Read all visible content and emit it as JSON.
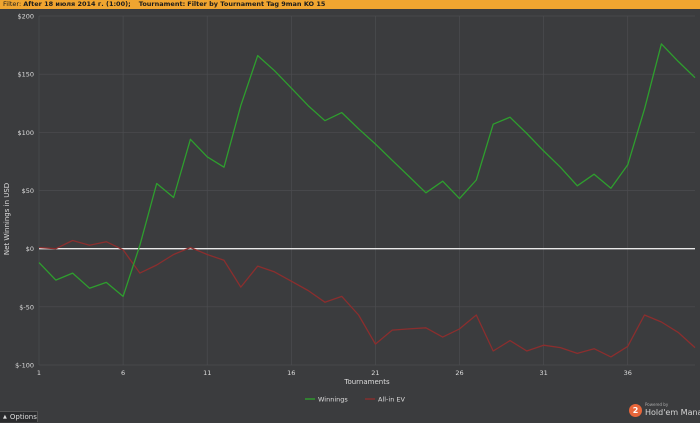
{
  "filter_bar": {
    "label": "Filter:",
    "date_filter": "After 18 июля 2014 г. (1:00);",
    "tournament_label": "Tournament:",
    "tournament_filter": "Filter by Tournament Tag  9man KO 15"
  },
  "footer": {
    "options_label": "Options",
    "powered_by": "Powered by",
    "brand_name": "Hold'em Manager",
    "brand_badge": "2"
  },
  "chart_data": {
    "type": "line",
    "xlabel": "Tournaments",
    "ylabel": "Net Winnings in USD",
    "xlim": [
      1,
      40
    ],
    "ylim": [
      -100,
      200
    ],
    "x_ticks": [
      1,
      6,
      11,
      16,
      21,
      26,
      31,
      36
    ],
    "y_ticks": [
      {
        "v": 200,
        "label": "$200"
      },
      {
        "v": 150,
        "label": "$150"
      },
      {
        "v": 100,
        "label": "$100"
      },
      {
        "v": 50,
        "label": "$50"
      },
      {
        "v": 0,
        "label": "$0"
      },
      {
        "v": -50,
        "label": "$-50"
      },
      {
        "v": -100,
        "label": "$-100"
      }
    ],
    "grid": true,
    "legend_position": "bottom-center",
    "zero_line_color": "#e8e8e8",
    "series": [
      {
        "name": "Winnings",
        "color": "#2e9e2e",
        "x": [
          1,
          2,
          3,
          4,
          5,
          6,
          7,
          8,
          9,
          10,
          11,
          12,
          13,
          14,
          15,
          16,
          17,
          18,
          19,
          20,
          21,
          22,
          23,
          24,
          25,
          26,
          27,
          28,
          29,
          30,
          31,
          32,
          33,
          34,
          35,
          36,
          37,
          38,
          39,
          40
        ],
        "values": [
          -12,
          -27,
          -21,
          -34,
          -29,
          -41,
          3,
          56,
          44,
          94,
          79,
          70,
          123,
          166,
          153,
          138,
          123,
          110,
          117,
          103,
          90,
          76,
          62,
          48,
          58,
          43,
          59,
          107,
          113,
          99,
          84,
          70,
          54,
          64,
          52,
          72,
          120,
          176,
          161,
          147
        ]
      },
      {
        "name": "All-in EV",
        "color": "#8b2e2e",
        "x": [
          1,
          2,
          3,
          4,
          5,
          6,
          7,
          8,
          9,
          10,
          11,
          12,
          13,
          14,
          15,
          16,
          17,
          18,
          19,
          20,
          21,
          22,
          23,
          24,
          25,
          26,
          27,
          28,
          29,
          30,
          31,
          32,
          33,
          34,
          35,
          36,
          37,
          38,
          39,
          40
        ],
        "values": [
          1,
          0,
          7,
          3,
          6,
          -1,
          -21,
          -14,
          -5,
          1,
          -5,
          -10,
          -33,
          -15,
          -20,
          -28,
          -36,
          -46,
          -41,
          -57,
          -82,
          -70,
          -69,
          -68,
          -76,
          -69,
          -57,
          -88,
          -79,
          -88,
          -83,
          -85,
          -90,
          -86,
          -93,
          -84,
          -57,
          -63,
          -72,
          -85
        ]
      }
    ]
  }
}
